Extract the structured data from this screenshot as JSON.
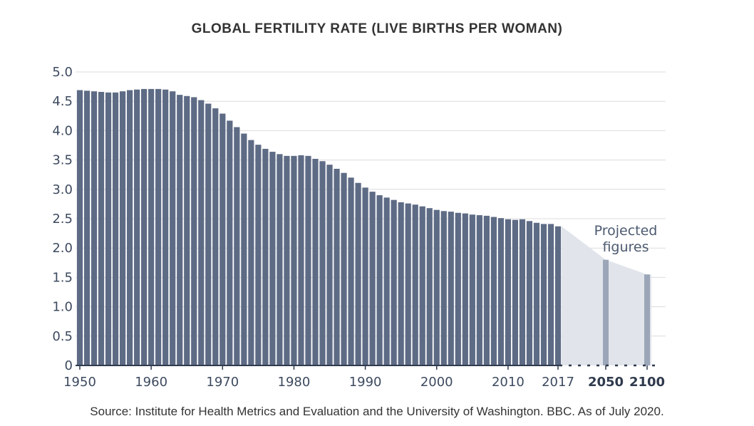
{
  "colors": {
    "bar": "#5e6b85",
    "projected_bar": "#9ba6b8",
    "projected_area": "#e1e5eb",
    "grid": "#dcdcdc",
    "axis": "#2f3a4d",
    "text": "#333333"
  },
  "chart_data": {
    "type": "bar",
    "title": "GLOBAL FERTILITY RATE (LIVE BIRTHS PER WOMAN)",
    "ylim": [
      0,
      5.0
    ],
    "y_ticks": [
      "0",
      "0.5",
      "1.0",
      "1.5",
      "2.0",
      "2.5",
      "3.0",
      "3.5",
      "4.0",
      "4.5",
      "5.0"
    ],
    "x_ticks": [
      "1950",
      "1960",
      "1970",
      "1980",
      "1990",
      "2000",
      "2010",
      "2017"
    ],
    "projected_ticks": [
      "2050",
      "2100"
    ],
    "grid": true,
    "series": [
      {
        "x": [
          1950,
          1951,
          1952,
          1953,
          1954,
          1955,
          1956,
          1957,
          1958,
          1959,
          1960,
          1961,
          1962,
          1963,
          1964,
          1965,
          1966,
          1967,
          1968,
          1969,
          1970,
          1971,
          1972,
          1973,
          1974,
          1975,
          1976,
          1977,
          1978,
          1979,
          1980,
          1981,
          1982,
          1983,
          1984,
          1985,
          1986,
          1987,
          1988,
          1989,
          1990,
          1991,
          1992,
          1993,
          1994,
          1995,
          1996,
          1997,
          1998,
          1999,
          2000,
          2001,
          2002,
          2003,
          2004,
          2005,
          2006,
          2007,
          2008,
          2009,
          2010,
          2011,
          2012,
          2013,
          2014,
          2015,
          2016,
          2017
        ],
        "values": [
          4.69,
          4.68,
          4.67,
          4.66,
          4.65,
          4.65,
          4.67,
          4.69,
          4.7,
          4.71,
          4.71,
          4.71,
          4.7,
          4.67,
          4.61,
          4.59,
          4.57,
          4.52,
          4.46,
          4.38,
          4.29,
          4.17,
          4.06,
          3.95,
          3.84,
          3.76,
          3.69,
          3.64,
          3.6,
          3.57,
          3.57,
          3.58,
          3.57,
          3.52,
          3.48,
          3.42,
          3.35,
          3.28,
          3.2,
          3.11,
          3.03,
          2.96,
          2.9,
          2.86,
          2.82,
          2.78,
          2.76,
          2.74,
          2.71,
          2.68,
          2.65,
          2.63,
          2.62,
          2.6,
          2.59,
          2.57,
          2.56,
          2.55,
          2.53,
          2.51,
          2.49,
          2.48,
          2.49,
          2.46,
          2.43,
          2.41,
          2.41,
          2.37
        ]
      },
      {
        "x": [
          2050,
          2100
        ],
        "values": [
          1.8,
          1.55
        ]
      }
    ],
    "annotation": [
      "Projected",
      "figures"
    ]
  },
  "source": "Source: Institute for Health Metrics and Evaluation and the University of Washington. BBC. As of July 2020."
}
